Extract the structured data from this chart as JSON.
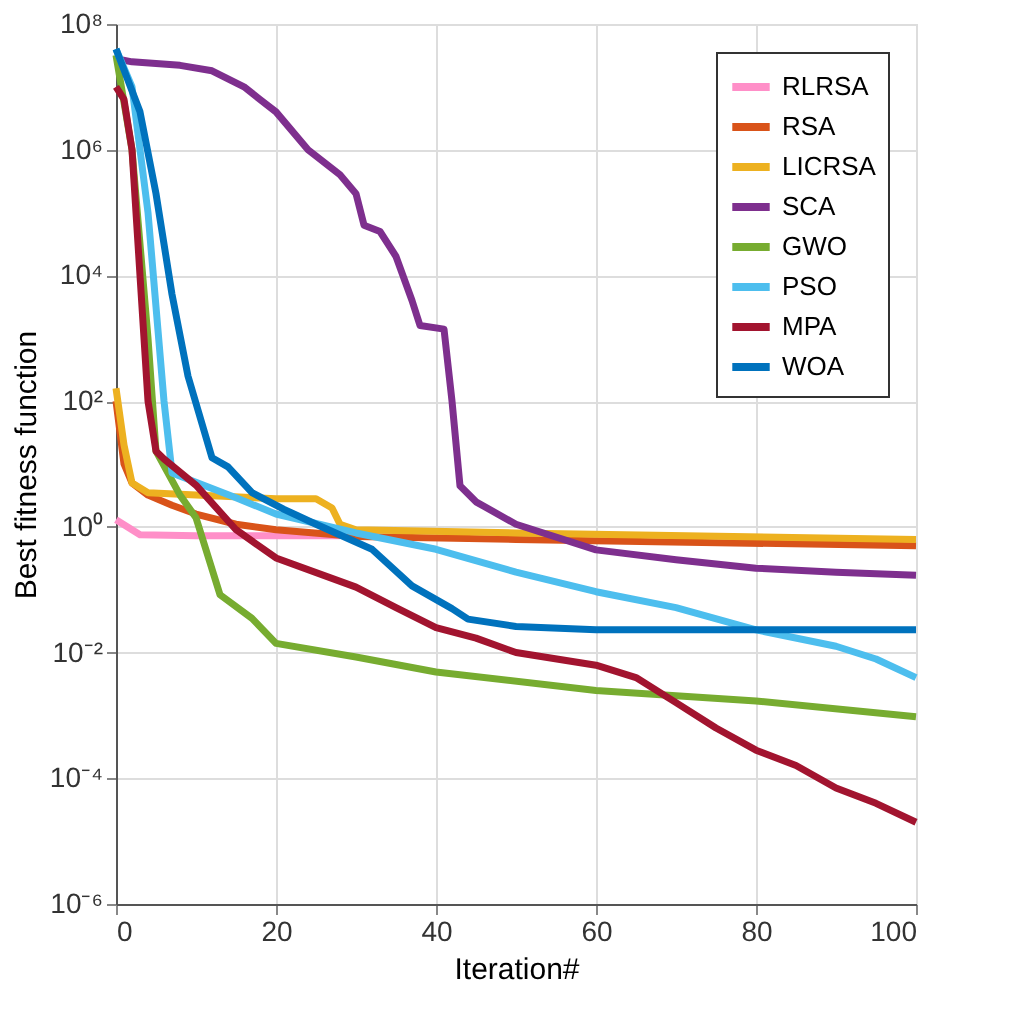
{
  "chart_data": {
    "type": "line",
    "xlabel": "Iteration#",
    "ylabel": "Best fitness function",
    "log": "y",
    "grid": true,
    "legend": "top right",
    "line_style": "solid",
    "marker": "none",
    "xlim": [
      0,
      100
    ],
    "xticks": [
      0,
      20,
      40,
      60,
      80,
      100
    ],
    "ylim": [
      1e-06,
      100000000.0
    ],
    "yticks": [
      {
        "value": 1e-06,
        "label": "10⁻⁶"
      },
      {
        "value": 0.0001,
        "label": "10⁻⁴"
      },
      {
        "value": 0.01,
        "label": "10⁻²"
      },
      {
        "value": 1,
        "label": "10⁰"
      },
      {
        "value": 100,
        "label": "10²"
      },
      {
        "value": 10000,
        "label": "10⁴"
      },
      {
        "value": 1000000,
        "label": "10⁶"
      },
      {
        "value": 100000000.0,
        "label": "10⁸"
      }
    ],
    "series": [
      {
        "name": "RLRSA",
        "color": "#ff8fc8",
        "x": [
          0,
          3,
          10,
          20,
          28
        ],
        "values": [
          1.3,
          0.75,
          0.72,
          0.72,
          0.72
        ]
      },
      {
        "name": "RSA",
        "color": "#d95319",
        "x": [
          0,
          1,
          2,
          4,
          7,
          10,
          15,
          20,
          30,
          50,
          100
        ],
        "values": [
          100,
          10,
          5,
          3.2,
          2.2,
          1.6,
          1.1,
          0.9,
          0.7,
          0.63,
          0.5
        ]
      },
      {
        "name": "LICRSA",
        "color": "#edb120",
        "x": [
          0,
          1,
          2,
          4,
          10,
          20,
          25,
          27,
          28,
          30,
          50,
          100
        ],
        "values": [
          160,
          20,
          5,
          3.5,
          3.2,
          2.8,
          2.8,
          2,
          1.1,
          0.9,
          0.8,
          0.63
        ]
      },
      {
        "name": "SCA",
        "color": "#7e2f8e",
        "x": [
          0,
          2,
          8,
          12,
          16,
          18,
          20,
          24,
          28,
          30,
          31,
          33,
          35,
          37,
          38,
          41,
          42,
          43,
          45,
          50,
          60,
          70,
          80,
          90,
          100
        ],
        "values": [
          28000000,
          25000000,
          22000000,
          18000000,
          10000000,
          6300000,
          4000000,
          1000000,
          400000,
          200000,
          63000,
          50000,
          20000,
          4000,
          1600,
          1400,
          100,
          4.5,
          2.5,
          1.1,
          0.43,
          0.3,
          0.22,
          0.19,
          0.17
        ]
      },
      {
        "name": "GWO",
        "color": "#77ac30",
        "x": [
          0,
          2,
          4,
          5,
          8,
          10,
          13,
          17,
          20,
          30,
          40,
          60,
          80,
          100
        ],
        "values": [
          32000000,
          1000000,
          1000,
          16,
          3.2,
          1.4,
          0.083,
          0.035,
          0.014,
          0.0085,
          0.0049,
          0.0025,
          0.0017,
          0.00095
        ]
      },
      {
        "name": "PSO",
        "color": "#4dbeee",
        "x": [
          0,
          2,
          4,
          6,
          7,
          15,
          20,
          30,
          40,
          50,
          60,
          70,
          80,
          90,
          95,
          100
        ],
        "values": [
          40000000,
          10000000,
          100000,
          100,
          7.2,
          2.9,
          1.6,
          0.8,
          0.44,
          0.19,
          0.093,
          0.052,
          0.023,
          0.0126,
          0.0079,
          0.004
        ]
      },
      {
        "name": "MPA",
        "color": "#a2142f",
        "x": [
          0,
          1,
          2,
          3,
          4,
          5,
          6,
          10,
          15,
          20,
          30,
          35,
          40,
          45,
          50,
          60,
          65,
          70,
          75,
          80,
          85,
          90,
          95,
          100
        ],
        "values": [
          10000000,
          6300000,
          1000000,
          10000,
          100,
          16,
          12,
          4.6,
          0.9,
          0.32,
          0.11,
          0.052,
          0.025,
          0.017,
          0.01,
          0.0063,
          0.004,
          0.0016,
          0.00063,
          0.00028,
          0.00016,
          7e-05,
          4e-05,
          2e-05
        ]
      },
      {
        "name": "WOA",
        "color": "#0072bd",
        "x": [
          0,
          3,
          5,
          7,
          9,
          12,
          14,
          17,
          21,
          25,
          32,
          37,
          42,
          44,
          50,
          60,
          100
        ],
        "values": [
          40000000,
          4000000,
          200000,
          5000,
          250,
          12.6,
          9,
          3.5,
          1.9,
          1.1,
          0.44,
          0.115,
          0.05,
          0.034,
          0.026,
          0.023,
          0.023
        ]
      }
    ]
  }
}
